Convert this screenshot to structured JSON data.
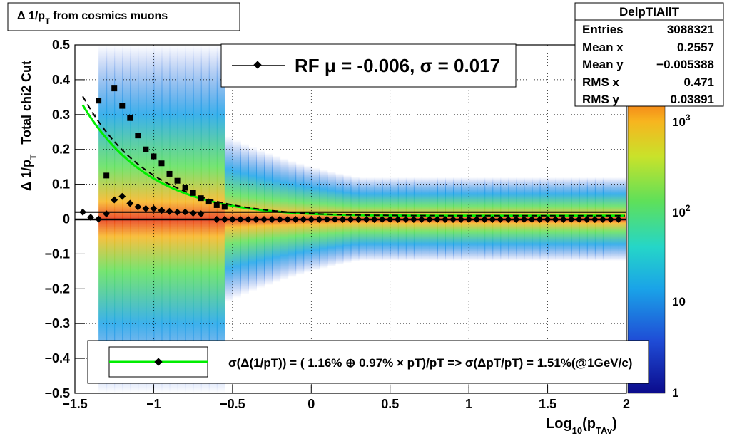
{
  "title": "Δ 1/p",
  "title_sub": "T",
  "title_rest": " from cosmics muons",
  "stats": {
    "name": "DelpTIAllT",
    "rows": [
      {
        "label": "Entries",
        "value": "3088321"
      },
      {
        "label": "Mean x",
        "value": "0.2557"
      },
      {
        "label": "Mean y",
        "value": "−0.005388"
      },
      {
        "label": "RMS x",
        "value": "0.471"
      },
      {
        "label": "RMS y",
        "value": "0.03891"
      }
    ]
  },
  "rf_legend": "RF μ = -0.006, σ =   0.017",
  "bottom_legend": "σ(Δ(1/pT)) = ( 1.16% ⊕  0.97% × pT)/pT => σ(ΔpT/pT) =  1.51%(@1GeV/c)",
  "ylabel_main": "Δ 1/p",
  "ylabel_sub": "T",
  "ylabel_extra": "Total chi2 Cut",
  "xlabel_main": "Log",
  "xlabel_sub1": "10",
  "xlabel_mid": "(p",
  "xlabel_sub2": "TAv",
  "xlabel_end": ")",
  "colors": {
    "fit_curve": "#00ee00",
    "markers": "#000000",
    "frame": "#000000"
  },
  "chart_data": {
    "type": "heatmap",
    "xlim": [
      -1.5,
      2.0
    ],
    "ylim": [
      -0.5,
      0.5
    ],
    "x_ticks": [
      "−1.5",
      "−1",
      "−0.5",
      "0",
      "0.5",
      "1",
      "1.5",
      "2"
    ],
    "x_tick_values": [
      -1.5,
      -1,
      -0.5,
      0,
      0.5,
      1,
      1.5,
      2
    ],
    "y_ticks": [
      "−0.5",
      "−0.4",
      "−0.3",
      "−0.2",
      "−0.1",
      "0",
      "0.1",
      "0.2",
      "0.3",
      "0.4",
      "0.5"
    ],
    "y_tick_values": [
      -0.5,
      -0.4,
      -0.3,
      -0.2,
      -0.1,
      0,
      0.1,
      0.2,
      0.3,
      0.4,
      0.5
    ],
    "z_scale": "log",
    "z_ticks": [
      "1",
      "10",
      "10^2",
      "10^3"
    ],
    "grid": true,
    "sigma_markers": {
      "x": [
        -1.35,
        -1.3,
        -1.25,
        -1.2,
        -1.15,
        -1.1,
        -1.05,
        -1.0,
        -0.95,
        -0.9,
        -0.85,
        -0.8,
        -0.75,
        -0.7,
        -0.65,
        -0.6,
        -0.55
      ],
      "y": [
        0.34,
        0.125,
        0.375,
        0.325,
        0.29,
        0.24,
        0.2,
        0.18,
        0.16,
        0.13,
        0.11,
        0.09,
        0.075,
        0.06,
        0.05,
        0.04,
        0.035
      ]
    },
    "mean_markers": {
      "x": [
        -1.45,
        -1.4,
        -1.35,
        -1.3,
        -1.25,
        -1.2,
        -1.15,
        -1.1,
        -1.05,
        -1.0,
        -0.95,
        -0.9,
        -0.85,
        -0.8,
        -0.75,
        -0.7
      ],
      "y": [
        0.02,
        0.005,
        0.0,
        0.015,
        0.055,
        0.065,
        0.045,
        0.035,
        0.03,
        0.03,
        0.025,
        0.022,
        0.02,
        0.02,
        0.017,
        0.015
      ]
    },
    "fit": {
      "name": "",
      "params": {
        "a": 0.0116,
        "b": 0.0097
      }
    },
    "series": [
      {
        "name": "RF",
        "note": "dashed fit line and black line with diamond markers at y≈0"
      }
    ]
  }
}
